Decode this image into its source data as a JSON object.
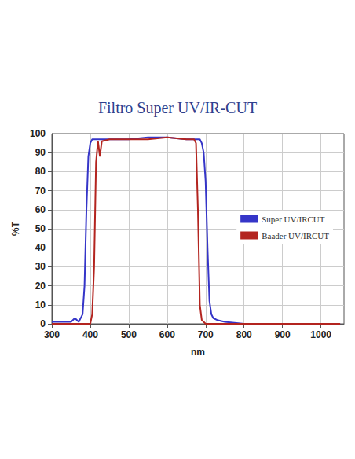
{
  "chart_data": {
    "type": "line",
    "title": "Filtro Super UV/IR-CUT",
    "x_label": "nm",
    "y_label": "%T",
    "x": [
      300,
      350,
      360,
      370,
      380,
      385,
      390,
      395,
      400,
      405,
      410,
      415,
      420,
      425,
      430,
      450,
      500,
      550,
      600,
      650,
      670,
      675,
      680,
      685,
      690,
      695,
      700,
      705,
      710,
      715,
      720,
      730,
      750,
      800,
      900,
      1000,
      1050
    ],
    "series": [
      {
        "name": "Super UV/IRCUT",
        "color": "#3535c8",
        "values": [
          1,
          1,
          3,
          1,
          5,
          20,
          60,
          88,
          95,
          97,
          97,
          97,
          97,
          97,
          97,
          97,
          97,
          98,
          98,
          97,
          97,
          97,
          97,
          97,
          95,
          90,
          75,
          40,
          12,
          5,
          3,
          2,
          1,
          0,
          0,
          0,
          0
        ]
      },
      {
        "name": "Baader UV/IRCUT",
        "color": "#b3241f",
        "values": [
          0,
          0,
          0,
          0,
          0,
          0,
          0,
          0,
          0,
          5,
          30,
          85,
          96,
          88,
          96,
          97,
          97,
          97,
          98,
          97,
          97,
          95,
          60,
          10,
          2,
          1,
          0,
          0,
          0,
          0,
          0,
          0,
          0,
          0,
          0,
          0,
          0
        ]
      }
    ],
    "xlim": [
      300,
      1060
    ],
    "xticks": [
      300,
      400,
      500,
      600,
      700,
      800,
      900,
      1000
    ],
    "ylim": [
      0,
      100
    ],
    "yticks": [
      0,
      10,
      20,
      30,
      40,
      50,
      60,
      70,
      80,
      90,
      100
    ],
    "grid": true,
    "legend": "right"
  }
}
